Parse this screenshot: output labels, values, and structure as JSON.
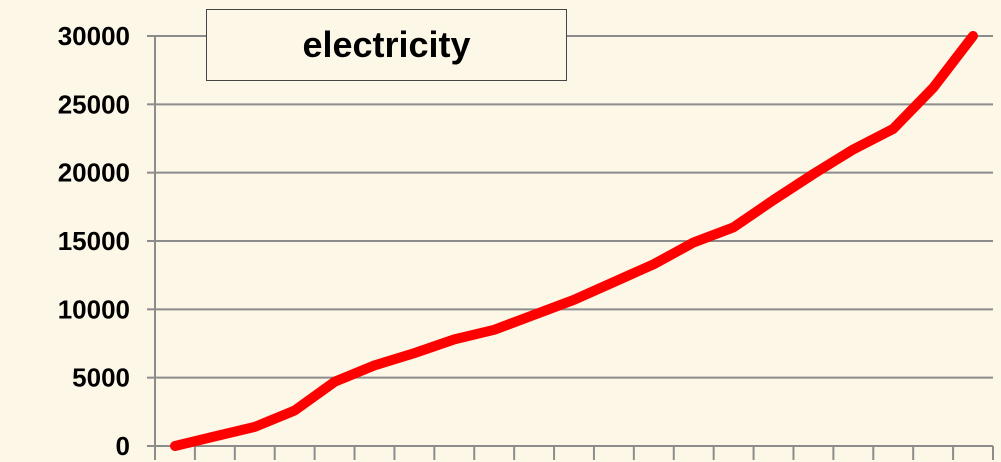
{
  "chart_data": {
    "type": "line",
    "x": [
      0,
      1,
      2,
      3,
      4,
      5,
      6,
      7,
      8,
      9,
      10,
      11,
      12,
      13,
      14,
      15,
      16,
      17,
      18,
      19,
      20
    ],
    "series": [
      {
        "name": "electricity",
        "color": "#ff0000",
        "values": [
          0,
          700,
          1400,
          2600,
          4700,
          5900,
          6800,
          7800,
          8500,
          9600,
          10700,
          12000,
          13300,
          14900,
          16000,
          18000,
          19900,
          21700,
          23200,
          26200,
          30000
        ]
      }
    ],
    "yticks": [
      0,
      5000,
      10000,
      15000,
      20000,
      25000,
      30000
    ],
    "ylim": [
      0,
      30000
    ],
    "grid": true,
    "legend": "top-left",
    "title": "",
    "xlabel": "",
    "ylabel": "",
    "colors": {
      "background": "#fdf7e8",
      "gridline": "#8c8c8c",
      "axis": "#8c8c8c",
      "line": "#ff0000"
    }
  }
}
